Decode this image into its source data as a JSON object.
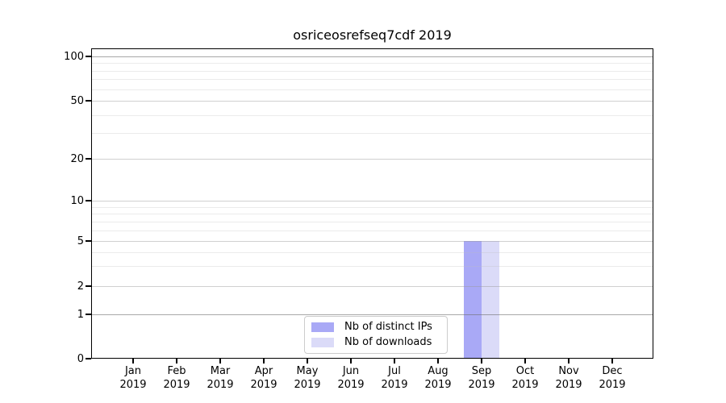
{
  "title": "osriceosrefseq7cdf 2019",
  "chart_data": {
    "type": "bar",
    "title": "osriceosrefseq7cdf 2019",
    "categories": [
      "Jan 2019",
      "Feb 2019",
      "Mar 2019",
      "Apr 2019",
      "May 2019",
      "Jun 2019",
      "Jul 2019",
      "Aug 2019",
      "Sep 2019",
      "Oct 2019",
      "Nov 2019",
      "Dec 2019"
    ],
    "series": [
      {
        "name": "Nb of distinct IPs",
        "color": "#a9a9f6",
        "values": [
          0,
          0,
          0,
          0,
          0,
          0,
          0,
          0,
          5,
          0,
          0,
          0
        ]
      },
      {
        "name": "Nb of downloads",
        "color": "#dbdbf8",
        "values": [
          0,
          0,
          0,
          0,
          0,
          0,
          0,
          0,
          5,
          0,
          0,
          0
        ]
      }
    ],
    "xlabel": "",
    "ylabel": "",
    "ylim": [
      0,
      110
    ],
    "yscale": "symlog",
    "y_major_ticks": [
      0,
      1,
      2,
      5,
      10,
      20,
      50,
      100
    ],
    "y_minor_ticks": [
      3,
      4,
      6,
      7,
      8,
      9,
      30,
      40,
      60,
      70,
      80,
      90
    ],
    "y_emphasized_gridlines": [
      1,
      100
    ],
    "grid": "on",
    "legend_position": "lower center"
  },
  "legend": {
    "items": [
      {
        "label": "Nb of distinct IPs",
        "color": "#a9a9f6"
      },
      {
        "label": "Nb of downloads",
        "color": "#dbdbf8"
      }
    ]
  }
}
